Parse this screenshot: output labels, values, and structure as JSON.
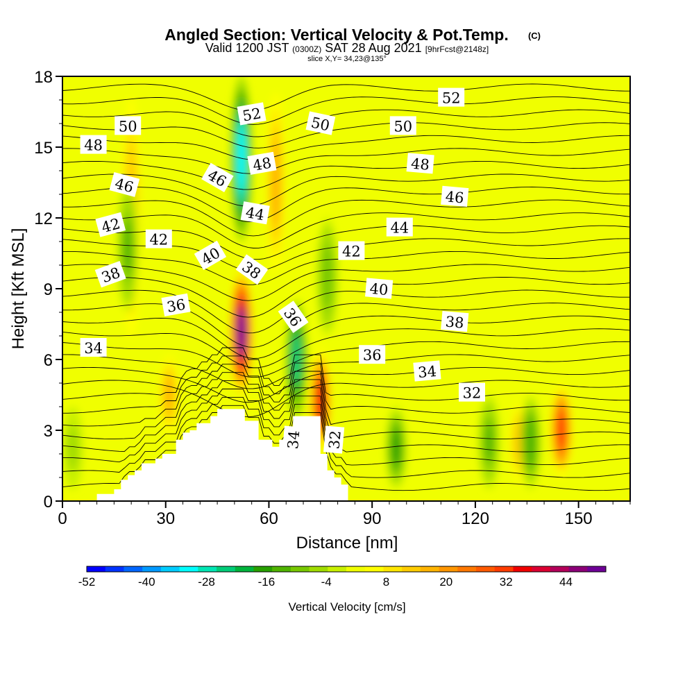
{
  "chart_data": {
    "type": "heatmap",
    "title": "Angled Section: Vertical Velocity & Pot.Temp.",
    "title_suffix": "(C)",
    "subtitle_parts": [
      "Valid 1200 JST",
      "(0300Z)",
      "SAT 28 Aug 2021",
      "[9hrFcst@2148z]"
    ],
    "subtitle2": "slice X,Y= 34,23@135°",
    "xlabel": "Distance [nm]",
    "ylabel": "Height [Kft MSL]",
    "xlim": [
      0,
      165
    ],
    "ylim": [
      0,
      18
    ],
    "x_ticks": [
      0,
      30,
      60,
      90,
      120,
      150
    ],
    "y_ticks": [
      0,
      3,
      6,
      9,
      12,
      15,
      18
    ],
    "colorbar": {
      "label": "Vertical Velocity [cm/s]",
      "tick_labels": [
        "-52",
        "-40",
        "-28",
        "-16",
        "-4",
        "8",
        "20",
        "32",
        "44"
      ],
      "min": -52,
      "max": 52,
      "colors": [
        "#0000ff",
        "#0033ff",
        "#0066ff",
        "#0099ff",
        "#00ccff",
        "#00ffff",
        "#00e6b4",
        "#00cc78",
        "#00b43c",
        "#28a000",
        "#50b400",
        "#78c800",
        "#a0dc00",
        "#c8f000",
        "#f0ff00",
        "#ffff00",
        "#ffe600",
        "#ffcc00",
        "#ffb400",
        "#ff9600",
        "#ff7800",
        "#ff5a00",
        "#ff3c00",
        "#f00000",
        "#dc0032",
        "#b4005a",
        "#8c0078",
        "#6e0096"
      ]
    },
    "vertical_velocity_features": [
      {
        "kind": "updraft",
        "x": 52,
        "z_min": 4.5,
        "z_max": 9.8,
        "max": 50
      },
      {
        "kind": "updraft",
        "x": 20,
        "z_min": 6,
        "z_max": 18,
        "max": 14
      },
      {
        "kind": "updraft",
        "x": 62,
        "z_min": 9,
        "z_max": 18,
        "max": 16
      },
      {
        "kind": "updraft",
        "x": 75,
        "z_min": 2,
        "z_max": 6.5,
        "max": 34
      },
      {
        "kind": "updraft",
        "x": 31,
        "z_min": 2.5,
        "z_max": 6.5,
        "max": 15
      },
      {
        "kind": "updraft",
        "x": 145,
        "z_min": 1,
        "z_max": 5,
        "max": 32
      },
      {
        "kind": "updraft",
        "x": 133,
        "z_min": 0.5,
        "z_max": 4.5,
        "max": 18
      },
      {
        "kind": "downdraft",
        "x": 52,
        "z_min": 11,
        "z_max": 18,
        "max": -33
      },
      {
        "kind": "downdraft",
        "x": 68,
        "z_min": 3.5,
        "z_max": 8.5,
        "max": -24
      },
      {
        "kind": "downdraft",
        "x": 97,
        "z_min": 0.5,
        "z_max": 4,
        "max": -16
      },
      {
        "kind": "downdraft",
        "x": 19,
        "z_min": 8,
        "z_max": 13.5,
        "max": -12
      },
      {
        "kind": "downdraft",
        "x": 77,
        "z_min": 7,
        "z_max": 12,
        "max": -10
      },
      {
        "kind": "downdraft",
        "x": 124,
        "z_min": 0.5,
        "z_max": 4.5,
        "max": -12
      },
      {
        "kind": "downdraft",
        "x": 136,
        "z_min": 0.5,
        "z_max": 4.5,
        "max": -14
      },
      {
        "kind": "downdraft",
        "x": 3,
        "z_min": 0.5,
        "z_max": 4,
        "max": -6
      }
    ],
    "terrain_profile": {
      "x": [
        10,
        15,
        17,
        19,
        21,
        23,
        25,
        27,
        29,
        31,
        33,
        35,
        37,
        39,
        41,
        43,
        45,
        47,
        49,
        51,
        53,
        55,
        57,
        59,
        61,
        63,
        65,
        67,
        69,
        71,
        73,
        75,
        77,
        79,
        81,
        83
      ],
      "z": [
        0.3,
        0.5,
        0.9,
        1.1,
        1.3,
        1.6,
        1.6,
        1.8,
        2.0,
        2.0,
        2.6,
        2.9,
        3.0,
        3.3,
        3.3,
        3.6,
        3.9,
        3.9,
        3.9,
        3.9,
        3.4,
        3.4,
        2.6,
        2.6,
        2.3,
        2.6,
        2.6,
        3.6,
        3.6,
        3.6,
        3.6,
        2.0,
        1.3,
        1.0,
        0.7,
        0.3
      ]
    },
    "theta_contour_labels": [
      {
        "text": "52",
        "x": 113,
        "z": 17.1,
        "angle": 0
      },
      {
        "text": "52",
        "x": 55,
        "z": 16.4,
        "angle": -10
      },
      {
        "text": "50",
        "x": 19,
        "z": 15.9,
        "angle": 0
      },
      {
        "text": "50",
        "x": 75,
        "z": 16.0,
        "angle": 12
      },
      {
        "text": "50",
        "x": 99,
        "z": 15.9,
        "angle": 0
      },
      {
        "text": "48",
        "x": 9,
        "z": 15.1,
        "angle": 0
      },
      {
        "text": "48",
        "x": 58,
        "z": 14.3,
        "angle": -10
      },
      {
        "text": "48",
        "x": 104,
        "z": 14.3,
        "angle": 5
      },
      {
        "text": "46",
        "x": 18,
        "z": 13.4,
        "angle": 15
      },
      {
        "text": "46",
        "x": 45,
        "z": 13.7,
        "angle": 30
      },
      {
        "text": "46",
        "x": 114,
        "z": 12.9,
        "angle": 5
      },
      {
        "text": "44",
        "x": 56,
        "z": 12.2,
        "angle": 10
      },
      {
        "text": "44",
        "x": 98,
        "z": 11.6,
        "angle": 0
      },
      {
        "text": "42",
        "x": 14,
        "z": 11.7,
        "angle": -15
      },
      {
        "text": "42",
        "x": 28,
        "z": 11.1,
        "angle": 0
      },
      {
        "text": "42",
        "x": 84,
        "z": 10.6,
        "angle": 0
      },
      {
        "text": "40",
        "x": 43,
        "z": 10.4,
        "angle": -30
      },
      {
        "text": "40",
        "x": 92,
        "z": 9.0,
        "angle": 5
      },
      {
        "text": "38",
        "x": 14,
        "z": 9.6,
        "angle": -20
      },
      {
        "text": "38",
        "x": 55,
        "z": 9.8,
        "angle": 35
      },
      {
        "text": "38",
        "x": 114,
        "z": 7.6,
        "angle": 5
      },
      {
        "text": "36",
        "x": 33,
        "z": 8.3,
        "angle": -10
      },
      {
        "text": "36",
        "x": 67,
        "z": 7.8,
        "angle": 55
      },
      {
        "text": "36",
        "x": 90,
        "z": 6.2,
        "angle": 0
      },
      {
        "text": "34",
        "x": 9,
        "z": 6.5,
        "angle": 0
      },
      {
        "text": "34",
        "x": 106,
        "z": 5.5,
        "angle": -5
      },
      {
        "text": "34",
        "x": 67,
        "z": 2.6,
        "angle": -85
      },
      {
        "text": "32",
        "x": 119,
        "z": 4.6,
        "angle": 0
      },
      {
        "text": "32",
        "x": 79,
        "z": 2.6,
        "angle": -85
      }
    ]
  }
}
